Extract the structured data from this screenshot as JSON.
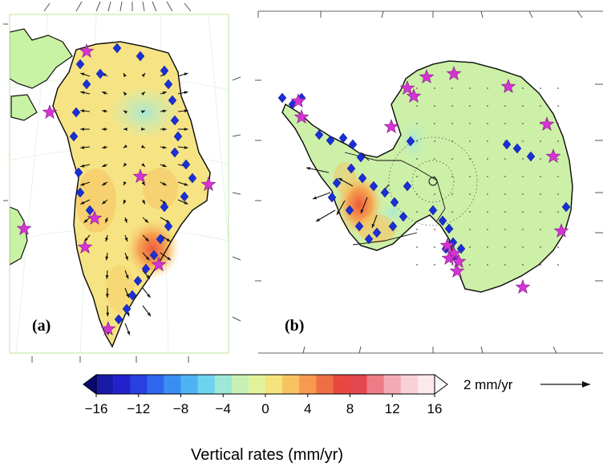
{
  "panels": [
    {
      "id": "a",
      "label": "(a)"
    },
    {
      "id": "b",
      "label": "(b)"
    }
  ],
  "colorbar": {
    "title": "Vertical rates (mm/yr)",
    "min": -16,
    "max": 16,
    "step": 2,
    "ticks": [
      "−16",
      "−12",
      "−8",
      "−4",
      "0",
      "4",
      "8",
      "12",
      "16"
    ],
    "colors": [
      "#0a0a6e",
      "#1a1aa8",
      "#2222cc",
      "#2a3fe0",
      "#2f66ee",
      "#3a8ef2",
      "#4fb3f3",
      "#6ed3ee",
      "#9de8d6",
      "#c6f0b4",
      "#e3f29a",
      "#f5e47e",
      "#f8c260",
      "#f59a4e",
      "#ef6f44",
      "#e64840",
      "#e4474d",
      "#ee7c86",
      "#f4aab2",
      "#f9d0d6",
      "#fde8ec",
      "#fffafa"
    ]
  },
  "scale": {
    "label": "2 mm/yr"
  },
  "legend_markers": {
    "star_color": "#d633d6",
    "diamond_color": "#1a2fd6",
    "land_color": "#c8f2a4",
    "ice_green": "#cdf0a8"
  }
}
